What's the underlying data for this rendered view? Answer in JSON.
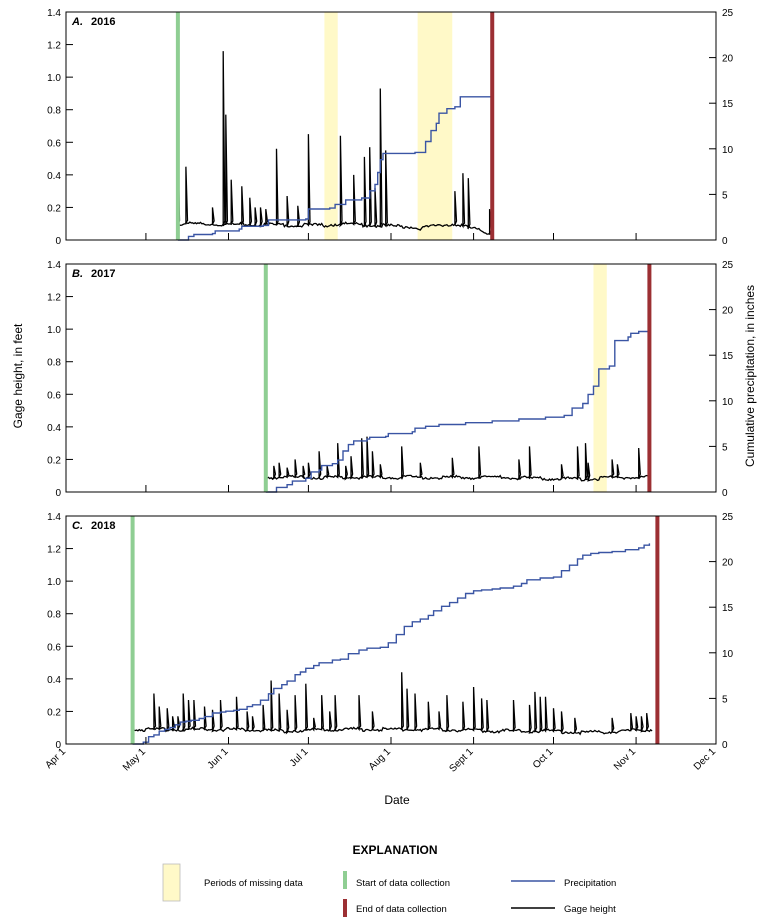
{
  "figure": {
    "y_axis_left_label": "Gage height, in feet",
    "y_axis_right_label": "Cumulative precipitation, in inches",
    "x_axis_label": "Date",
    "x_ticks": [
      "Apr 1",
      "May 1",
      "Jun 1",
      "Jul 1",
      "Aug 1",
      "Sept 1",
      "Oct 1",
      "Nov 1",
      "Dec 1"
    ],
    "left_ticks": [
      "0",
      "0.2",
      "0.4",
      "0.6",
      "0.8",
      "1.0",
      "1.2",
      "1.4"
    ],
    "right_ticks": [
      "0",
      "5",
      "10",
      "15",
      "20",
      "25"
    ]
  },
  "explanation": {
    "title": "EXPLANATION",
    "missing": "Periods of missing data",
    "start": "Start of data collection",
    "end": "End of data collection",
    "precip": "Precipitation",
    "gage": "Gage height"
  },
  "colors": {
    "gage": "#000000",
    "precip": "#3a55a4",
    "start": "#8fce93",
    "end": "#9c2f33",
    "missing": "#fff9c8"
  },
  "chart_data": [
    {
      "type": "line",
      "panel": "A.",
      "title": "2016",
      "x_domain_days": [
        0,
        244
      ],
      "left_ylim": [
        0,
        1.4
      ],
      "right_ylim": [
        0,
        25
      ],
      "start_day": 42,
      "end_day": 160,
      "missing_periods": [
        [
          97,
          102
        ],
        [
          132,
          145
        ]
      ],
      "gage_baseline": [
        [
          42,
          0.1
        ],
        [
          95,
          0.09
        ],
        [
          97,
          0.09
        ],
        [
          102,
          0.1
        ],
        [
          130,
          0.08
        ],
        [
          132,
          0.07
        ],
        [
          145,
          0.1
        ],
        [
          155,
          0.06
        ],
        [
          159,
          0.04
        ]
      ],
      "gage_spikes": [
        [
          42,
          0.59
        ],
        [
          45,
          0.45
        ],
        [
          55,
          0.2
        ],
        [
          59,
          1.16
        ],
        [
          60,
          0.77
        ],
        [
          62,
          0.37
        ],
        [
          66,
          0.33
        ],
        [
          69,
          0.26
        ],
        [
          71,
          0.2
        ],
        [
          73,
          0.2
        ],
        [
          75,
          0.19
        ],
        [
          79,
          0.56
        ],
        [
          83,
          0.27
        ],
        [
          87,
          0.21
        ],
        [
          91,
          0.65
        ],
        [
          103,
          0.64
        ],
        [
          108,
          0.4
        ],
        [
          112,
          0.51
        ],
        [
          114,
          0.57
        ],
        [
          116,
          0.32
        ],
        [
          118,
          0.93
        ],
        [
          120,
          0.55
        ],
        [
          146,
          0.3
        ],
        [
          149,
          0.41
        ],
        [
          151,
          0.38
        ],
        [
          159,
          0.19
        ]
      ],
      "precip_cumulative": [
        [
          42,
          0
        ],
        [
          45,
          0
        ],
        [
          46,
          0.4
        ],
        [
          48,
          0.6
        ],
        [
          55,
          0.7
        ],
        [
          56,
          1.0
        ],
        [
          65,
          1.2
        ],
        [
          66,
          1.5
        ],
        [
          74,
          1.6
        ],
        [
          76,
          2.2
        ],
        [
          90,
          2.3
        ],
        [
          91,
          3.4
        ],
        [
          99,
          3.5
        ],
        [
          101,
          3.9
        ],
        [
          103,
          3.9
        ],
        [
          105,
          4.4
        ],
        [
          111,
          4.6
        ],
        [
          114,
          5.4
        ],
        [
          116,
          6.1
        ],
        [
          117,
          7.4
        ],
        [
          118,
          8.8
        ],
        [
          119,
          9.5
        ],
        [
          131,
          9.6
        ],
        [
          135,
          10.8
        ],
        [
          137,
          12.0
        ],
        [
          139,
          12.8
        ],
        [
          140,
          13.9
        ],
        [
          143,
          14.4
        ],
        [
          146,
          14.6
        ],
        [
          148,
          15.7
        ],
        [
          160,
          15.8
        ]
      ]
    },
    {
      "type": "line",
      "panel": "B.",
      "title": "2017",
      "x_domain_days": [
        0,
        244
      ],
      "left_ylim": [
        0,
        1.4
      ],
      "right_ylim": [
        0,
        25
      ],
      "start_day": 75,
      "end_day": 219,
      "missing_periods": [
        [
          198,
          203
        ]
      ],
      "gage_baseline": [
        [
          75,
          0.09
        ],
        [
          100,
          0.09
        ],
        [
          130,
          0.09
        ],
        [
          160,
          0.09
        ],
        [
          190,
          0.08
        ],
        [
          198,
          0.08
        ],
        [
          203,
          0.09
        ],
        [
          219,
          0.09
        ]
      ],
      "gage_spikes": [
        [
          78,
          0.16
        ],
        [
          80,
          0.18
        ],
        [
          83,
          0.15
        ],
        [
          86,
          0.2
        ],
        [
          89,
          0.16
        ],
        [
          91,
          0.18
        ],
        [
          95,
          0.25
        ],
        [
          98,
          0.16
        ],
        [
          102,
          0.3
        ],
        [
          105,
          0.16
        ],
        [
          107,
          0.22
        ],
        [
          111,
          0.33
        ],
        [
          113,
          0.34
        ],
        [
          115,
          0.25
        ],
        [
          118,
          0.17
        ],
        [
          126,
          0.28
        ],
        [
          133,
          0.18
        ],
        [
          145,
          0.21
        ],
        [
          155,
          0.28
        ],
        [
          170,
          0.2
        ],
        [
          174,
          0.28
        ],
        [
          186,
          0.17
        ],
        [
          192,
          0.28
        ],
        [
          195,
          0.3
        ],
        [
          196,
          0.18
        ],
        [
          205,
          0.2
        ],
        [
          207,
          0.17
        ],
        [
          215,
          0.27
        ]
      ],
      "precip_cumulative": [
        [
          75,
          0
        ],
        [
          77,
          0
        ],
        [
          79,
          0.5
        ],
        [
          83,
          0.8
        ],
        [
          85,
          1.2
        ],
        [
          90,
          1.5
        ],
        [
          92,
          2.2
        ],
        [
          95,
          2.4
        ],
        [
          96,
          2.9
        ],
        [
          100,
          3.1
        ],
        [
          102,
          3.5
        ],
        [
          104,
          4.5
        ],
        [
          106,
          5.2
        ],
        [
          108,
          5.6
        ],
        [
          113,
          5.8
        ],
        [
          114,
          6.0
        ],
        [
          120,
          6.1
        ],
        [
          121,
          6.4
        ],
        [
          130,
          6.6
        ],
        [
          131,
          7.0
        ],
        [
          135,
          7.2
        ],
        [
          140,
          7.4
        ],
        [
          150,
          7.6
        ],
        [
          160,
          7.8
        ],
        [
          170,
          8.0
        ],
        [
          180,
          8.2
        ],
        [
          187,
          8.4
        ],
        [
          190,
          9.2
        ],
        [
          194,
          9.7
        ],
        [
          196,
          10.7
        ],
        [
          198,
          11.6
        ],
        [
          200,
          13.5
        ],
        [
          204,
          13.8
        ],
        [
          206,
          16.6
        ],
        [
          211,
          17.0
        ],
        [
          212,
          17.4
        ],
        [
          215,
          17.6
        ],
        [
          219,
          17.8
        ]
      ]
    },
    {
      "type": "line",
      "panel": "C.",
      "title": "2018",
      "x_domain_days": [
        0,
        244
      ],
      "left_ylim": [
        0,
        1.4
      ],
      "right_ylim": [
        0,
        25
      ],
      "start_day": 25,
      "end_day": 222,
      "missing_periods": [],
      "gage_baseline": [
        [
          25,
          0.09
        ],
        [
          40,
          0.09
        ],
        [
          60,
          0.09
        ],
        [
          80,
          0.08
        ],
        [
          100,
          0.09
        ],
        [
          120,
          0.09
        ],
        [
          140,
          0.09
        ],
        [
          160,
          0.08
        ],
        [
          180,
          0.08
        ],
        [
          195,
          0.07
        ],
        [
          210,
          0.08
        ],
        [
          220,
          0.09
        ]
      ],
      "gage_spikes": [
        [
          33,
          0.31
        ],
        [
          35,
          0.23
        ],
        [
          38,
          0.22
        ],
        [
          40,
          0.17
        ],
        [
          42,
          0.17
        ],
        [
          44,
          0.31
        ],
        [
          46,
          0.27
        ],
        [
          48,
          0.27
        ],
        [
          52,
          0.23
        ],
        [
          55,
          0.21
        ],
        [
          58,
          0.27
        ],
        [
          64,
          0.29
        ],
        [
          68,
          0.2
        ],
        [
          70,
          0.17
        ],
        [
          74,
          0.24
        ],
        [
          77,
          0.39
        ],
        [
          80,
          0.31
        ],
        [
          83,
          0.21
        ],
        [
          86,
          0.3
        ],
        [
          90,
          0.37
        ],
        [
          93,
          0.16
        ],
        [
          96,
          0.3
        ],
        [
          99,
          0.2
        ],
        [
          101,
          0.3
        ],
        [
          110,
          0.3
        ],
        [
          115,
          0.2
        ],
        [
          126,
          0.44
        ],
        [
          128,
          0.34
        ],
        [
          131,
          0.31
        ],
        [
          136,
          0.26
        ],
        [
          140,
          0.2
        ],
        [
          143,
          0.3
        ],
        [
          149,
          0.26
        ],
        [
          153,
          0.35
        ],
        [
          156,
          0.28
        ],
        [
          158,
          0.27
        ],
        [
          168,
          0.27
        ],
        [
          174,
          0.24
        ],
        [
          176,
          0.32
        ],
        [
          178,
          0.29
        ],
        [
          180,
          0.29
        ],
        [
          183,
          0.22
        ],
        [
          186,
          0.2
        ],
        [
          191,
          0.16
        ],
        [
          205,
          0.16
        ],
        [
          212,
          0.19
        ],
        [
          214,
          0.17
        ],
        [
          216,
          0.17
        ],
        [
          218,
          0.19
        ]
      ],
      "precip_cumulative": [
        [
          25,
          0
        ],
        [
          28,
          0
        ],
        [
          29,
          0.2
        ],
        [
          31,
          0.8
        ],
        [
          33,
          1.0
        ],
        [
          35,
          1.4
        ],
        [
          37,
          1.6
        ],
        [
          39,
          1.8
        ],
        [
          41,
          2.1
        ],
        [
          43,
          2.4
        ],
        [
          45,
          2.5
        ],
        [
          47,
          2.6
        ],
        [
          50,
          2.8
        ],
        [
          52,
          3.0
        ],
        [
          55,
          3.4
        ],
        [
          58,
          3.5
        ],
        [
          60,
          3.6
        ],
        [
          63,
          3.7
        ],
        [
          65,
          3.8
        ],
        [
          68,
          4.1
        ],
        [
          70,
          4.3
        ],
        [
          73,
          4.8
        ],
        [
          76,
          5.5
        ],
        [
          78,
          6.1
        ],
        [
          81,
          6.5
        ],
        [
          83,
          6.9
        ],
        [
          86,
          7.6
        ],
        [
          88,
          7.9
        ],
        [
          90,
          8.3
        ],
        [
          93,
          8.6
        ],
        [
          95,
          8.9
        ],
        [
          100,
          9.2
        ],
        [
          103,
          9.3
        ],
        [
          106,
          9.9
        ],
        [
          110,
          10.3
        ],
        [
          113,
          10.5
        ],
        [
          118,
          10.6
        ],
        [
          121,
          11.1
        ],
        [
          124,
          12.0
        ],
        [
          127,
          12.9
        ],
        [
          130,
          13.4
        ],
        [
          133,
          13.7
        ],
        [
          136,
          14.1
        ],
        [
          138,
          14.6
        ],
        [
          141,
          15.1
        ],
        [
          144,
          15.5
        ],
        [
          147,
          16.0
        ],
        [
          150,
          16.5
        ],
        [
          153,
          16.8
        ],
        [
          156,
          16.9
        ],
        [
          160,
          17.0
        ],
        [
          163,
          17.1
        ],
        [
          168,
          17.3
        ],
        [
          171,
          17.6
        ],
        [
          173,
          18.0
        ],
        [
          178,
          18.2
        ],
        [
          183,
          18.3
        ],
        [
          186,
          19.0
        ],
        [
          189,
          19.6
        ],
        [
          192,
          20.3
        ],
        [
          194,
          20.7
        ],
        [
          197,
          20.9
        ],
        [
          200,
          21.0
        ],
        [
          205,
          21.1
        ],
        [
          210,
          21.3
        ],
        [
          215,
          21.5
        ],
        [
          217,
          21.8
        ],
        [
          219,
          22.0
        ]
      ]
    }
  ]
}
